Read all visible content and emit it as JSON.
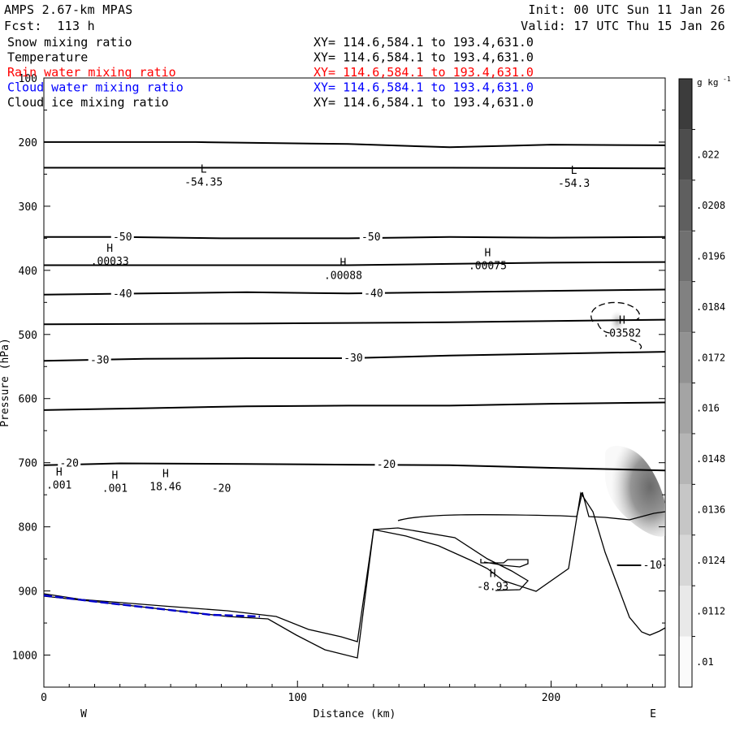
{
  "header": {
    "model": "AMPS 2.67-km MPAS",
    "forecast": "Fcst:  113 h",
    "init": "Init: 00 UTC Sun 11 Jan 26",
    "valid": "Valid: 17 UTC Thu 15 Jan 26"
  },
  "fields": [
    {
      "name": "Snow mixing ratio",
      "xy": "XY= 114.6,584.1 to 193.4,631.0",
      "color": "#000000"
    },
    {
      "name": "Temperature",
      "xy": "XY= 114.6,584.1 to 193.4,631.0",
      "color": "#000000"
    },
    {
      "name": "Rain water mixing ratio",
      "xy": "XY= 114.6,584.1 to 193.4,631.0",
      "color": "#ff0000"
    },
    {
      "name": "Cloud water mixing ratio",
      "xy": "XY= 114.6,584.1 to 193.4,631.0",
      "color": "#0000ff"
    },
    {
      "name": "Cloud ice mixing ratio",
      "xy": "XY= 114.6,584.1 to 193.4,631.0",
      "color": "#000000"
    }
  ],
  "chart_data": {
    "type": "contour cross-section",
    "xlabel": "Distance (km)",
    "ylabel": "Pressure (hPa)",
    "xlim": [
      0,
      245
    ],
    "ylim": [
      1050,
      100
    ],
    "x_ticks": [
      0,
      100,
      200
    ],
    "y_ticks": [
      100,
      200,
      300,
      400,
      500,
      600,
      700,
      800,
      900,
      1000
    ],
    "endpoints": {
      "left": "W",
      "right": "E"
    },
    "colorbar": {
      "unit": "g kg",
      "unit_sup": "-1",
      "levels": [
        ".01",
        ".0112",
        ".0124",
        ".0136",
        ".0148",
        ".016",
        ".0172",
        ".0184",
        ".0196",
        ".0208",
        ".022"
      ]
    },
    "isotherms": [
      {
        "label": "-50",
        "points": [
          [
            0,
            348
          ],
          [
            30,
            348
          ],
          [
            70,
            350
          ],
          [
            120,
            350
          ],
          [
            160,
            348
          ],
          [
            200,
            349
          ],
          [
            245,
            348
          ]
        ],
        "labels_at": [
          [
            31,
            348
          ],
          [
            129,
            348
          ]
        ]
      },
      {
        "label": "-40",
        "points": [
          [
            0,
            438
          ],
          [
            40,
            436
          ],
          [
            80,
            434
          ],
          [
            120,
            436
          ],
          [
            160,
            434
          ],
          [
            200,
            432
          ],
          [
            245,
            430
          ]
        ],
        "labels_at": [
          [
            31,
            437
          ],
          [
            130,
            436
          ]
        ]
      },
      {
        "label": "-30",
        "points": [
          [
            0,
            541
          ],
          [
            40,
            538
          ],
          [
            80,
            537
          ],
          [
            120,
            537
          ],
          [
            160,
            533
          ],
          [
            200,
            530
          ],
          [
            245,
            527
          ]
        ],
        "labels_at": [
          [
            22,
            540
          ],
          [
            122,
            537
          ]
        ]
      },
      {
        "label": "-20",
        "points": [
          [
            0,
            704
          ],
          [
            30,
            701
          ],
          [
            80,
            702
          ],
          [
            120,
            703
          ],
          [
            160,
            704
          ],
          [
            200,
            708
          ],
          [
            245,
            712
          ]
        ],
        "labels_at": [
          [
            10,
            701
          ],
          [
            135,
            703
          ],
          [
            70,
            740
          ]
        ]
      },
      {
        "label": "-10",
        "points": [
          [
            226,
            860
          ],
          [
            245,
            860
          ]
        ],
        "labels_at": [
          [
            240,
            860
          ]
        ]
      }
    ],
    "other_lines": [
      {
        "name": "upper contour 1",
        "points": [
          [
            0,
            200
          ],
          [
            60,
            200
          ],
          [
            120,
            203
          ],
          [
            160,
            208
          ],
          [
            200,
            204
          ],
          [
            245,
            205
          ]
        ]
      },
      {
        "name": "upper contour 2",
        "points": [
          [
            0,
            240
          ],
          [
            80,
            240
          ],
          [
            160,
            240
          ],
          [
            245,
            241
          ]
        ]
      },
      {
        "name": "contour 390",
        "points": [
          [
            0,
            392
          ],
          [
            80,
            392
          ],
          [
            120,
            392
          ],
          [
            160,
            390
          ],
          [
            200,
            388
          ],
          [
            245,
            387
          ]
        ]
      },
      {
        "name": "contour 484",
        "points": [
          [
            0,
            484
          ],
          [
            80,
            483
          ],
          [
            120,
            482
          ],
          [
            160,
            481
          ],
          [
            200,
            479
          ],
          [
            245,
            477
          ]
        ]
      },
      {
        "name": "contour 615",
        "points": [
          [
            0,
            618
          ],
          [
            40,
            615
          ],
          [
            80,
            612
          ],
          [
            120,
            611
          ],
          [
            160,
            611
          ],
          [
            200,
            608
          ],
          [
            245,
            606
          ]
        ]
      }
    ],
    "h_l_markers": [
      {
        "kind": "L",
        "value": "-54.35",
        "x": 63,
        "p": 260
      },
      {
        "kind": "L",
        "value": "-54.3",
        "x": 209,
        "p": 262
      },
      {
        "kind": "H",
        "value": ".00033",
        "x": 26,
        "p": 384
      },
      {
        "kind": "H",
        "value": ".00088",
        "x": 118,
        "p": 406
      },
      {
        "kind": "H",
        "value": ".00075",
        "x": 175,
        "p": 391
      },
      {
        "kind": "H",
        "value": ".03582",
        "x": 228,
        "p": 496
      },
      {
        "kind": "H",
        "value": ".001",
        "x": 6,
        "p": 733
      },
      {
        "kind": "H",
        "value": ".001",
        "x": 28,
        "p": 738
      },
      {
        "kind": "H",
        "value": "18.46",
        "x": 48,
        "p": 735
      },
      {
        "kind": "H",
        "value": "-8.93",
        "x": 177,
        "p": 891
      }
    ]
  }
}
